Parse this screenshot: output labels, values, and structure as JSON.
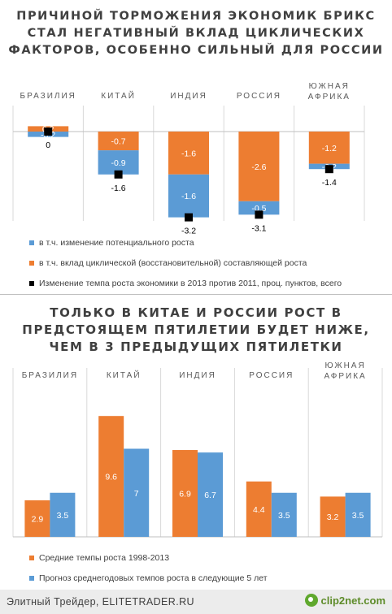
{
  "footer": {
    "text": "Элитный Трейдер, ELITETRADER.RU",
    "brand": "clip2net.com"
  },
  "chart_data": [
    {
      "type": "bar",
      "title": "Причиной торможения экономик БРИКС стал негативный вклад циклических факторов, особенно сильный для России",
      "stacked": true,
      "categories": [
        "БРАЗИЛИЯ",
        "КИТАЙ",
        "ИНДИЯ",
        "РОССИЯ",
        "ЮЖНАЯ АФРИКА"
      ],
      "ylim": [
        -3.6,
        0.3
      ],
      "grid": false,
      "legend_position": "bottom",
      "series": [
        {
          "name": "в т.ч. изменение потенциального роста",
          "color": "#5b9bd5",
          "values": [
            -0.2,
            -0.9,
            -1.6,
            -0.5,
            -0.2
          ]
        },
        {
          "name": "в т.ч. вклад циклической (восстановительной) составляющей роста",
          "color": "#ed7d31",
          "values": [
            0.2,
            -0.7,
            -1.6,
            -2.6,
            -1.2
          ]
        }
      ],
      "markers": {
        "name": "Изменение темпа роста экономики в 2013 против 2011, проц. пунктов, всего",
        "color": "#000000",
        "values": [
          0,
          -1.6,
          -3.2,
          -3.1,
          -1.4
        ]
      },
      "segment_labels": {
        "blue": [
          "-0.2",
          "-0.9",
          "-1.6",
          "-0.5",
          "-0.2"
        ],
        "orange": [
          "0.2",
          "-0.7",
          "-1.6",
          "-2.6",
          "-1.2"
        ],
        "total": [
          "0",
          "-1.6",
          "-3.2",
          "-3.1",
          "-1.4"
        ]
      }
    },
    {
      "type": "bar",
      "title": "Только в Китае и России рост в предстоящем пятилетии будет ниже, чем в 3 предыдущих пятилетки",
      "categories": [
        "БРАЗИЛИЯ",
        "КИТАЙ",
        "ИНДИЯ",
        "РОССИЯ",
        "ЮЖНАЯ АФРИКА"
      ],
      "ylim": [
        0,
        11.5
      ],
      "grid": false,
      "legend_position": "bottom",
      "series": [
        {
          "name": "Средние темпы роста 1998-2013",
          "color": "#ed7d31",
          "values": [
            2.9,
            9.6,
            6.9,
            4.4,
            3.2
          ]
        },
        {
          "name": "Прогноз среднегодовых темпов роста в следующие 5 лет",
          "color": "#5b9bd5",
          "values": [
            3.5,
            7,
            6.7,
            3.5,
            3.5
          ]
        }
      ]
    }
  ]
}
